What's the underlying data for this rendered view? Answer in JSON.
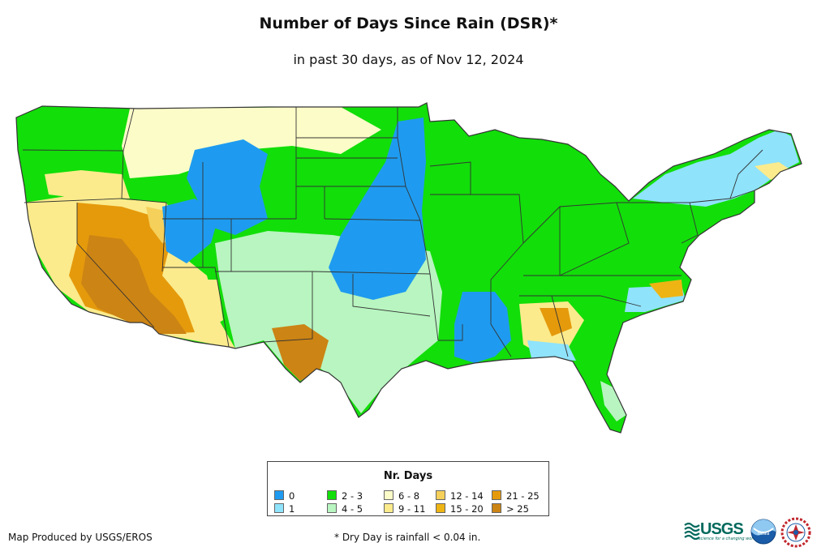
{
  "title": "Number of Days Since Rain (DSR)*",
  "subtitle": "in past 30 days, as of Nov 12, 2024",
  "legend": {
    "title": "Nr. Days",
    "items": [
      {
        "label": "0",
        "color": "#1e9bf0"
      },
      {
        "label": "1",
        "color": "#8fe3fb"
      },
      {
        "label": "2 - 3",
        "color": "#12de0a"
      },
      {
        "label": "4 - 5",
        "color": "#b8f5c0"
      },
      {
        "label": "6 - 8",
        "color": "#fcfcc8"
      },
      {
        "label": "9 - 11",
        "color": "#fbeb8c"
      },
      {
        "label": "12 - 14",
        "color": "#f5d05a"
      },
      {
        "label": "15 - 20",
        "color": "#eeb414"
      },
      {
        "label": "21 - 25",
        "color": "#e59a0c"
      },
      {
        "label": "> 25",
        "color": "#cc8414"
      }
    ]
  },
  "credit": "Map Produced by USGS/EROS",
  "footnote": "* Dry Day is rainfall < 0.04 in.",
  "logos": {
    "usgs_text": "USGS",
    "usgs_tagline": "science for a changing world",
    "noaa_text": "noaa"
  }
}
